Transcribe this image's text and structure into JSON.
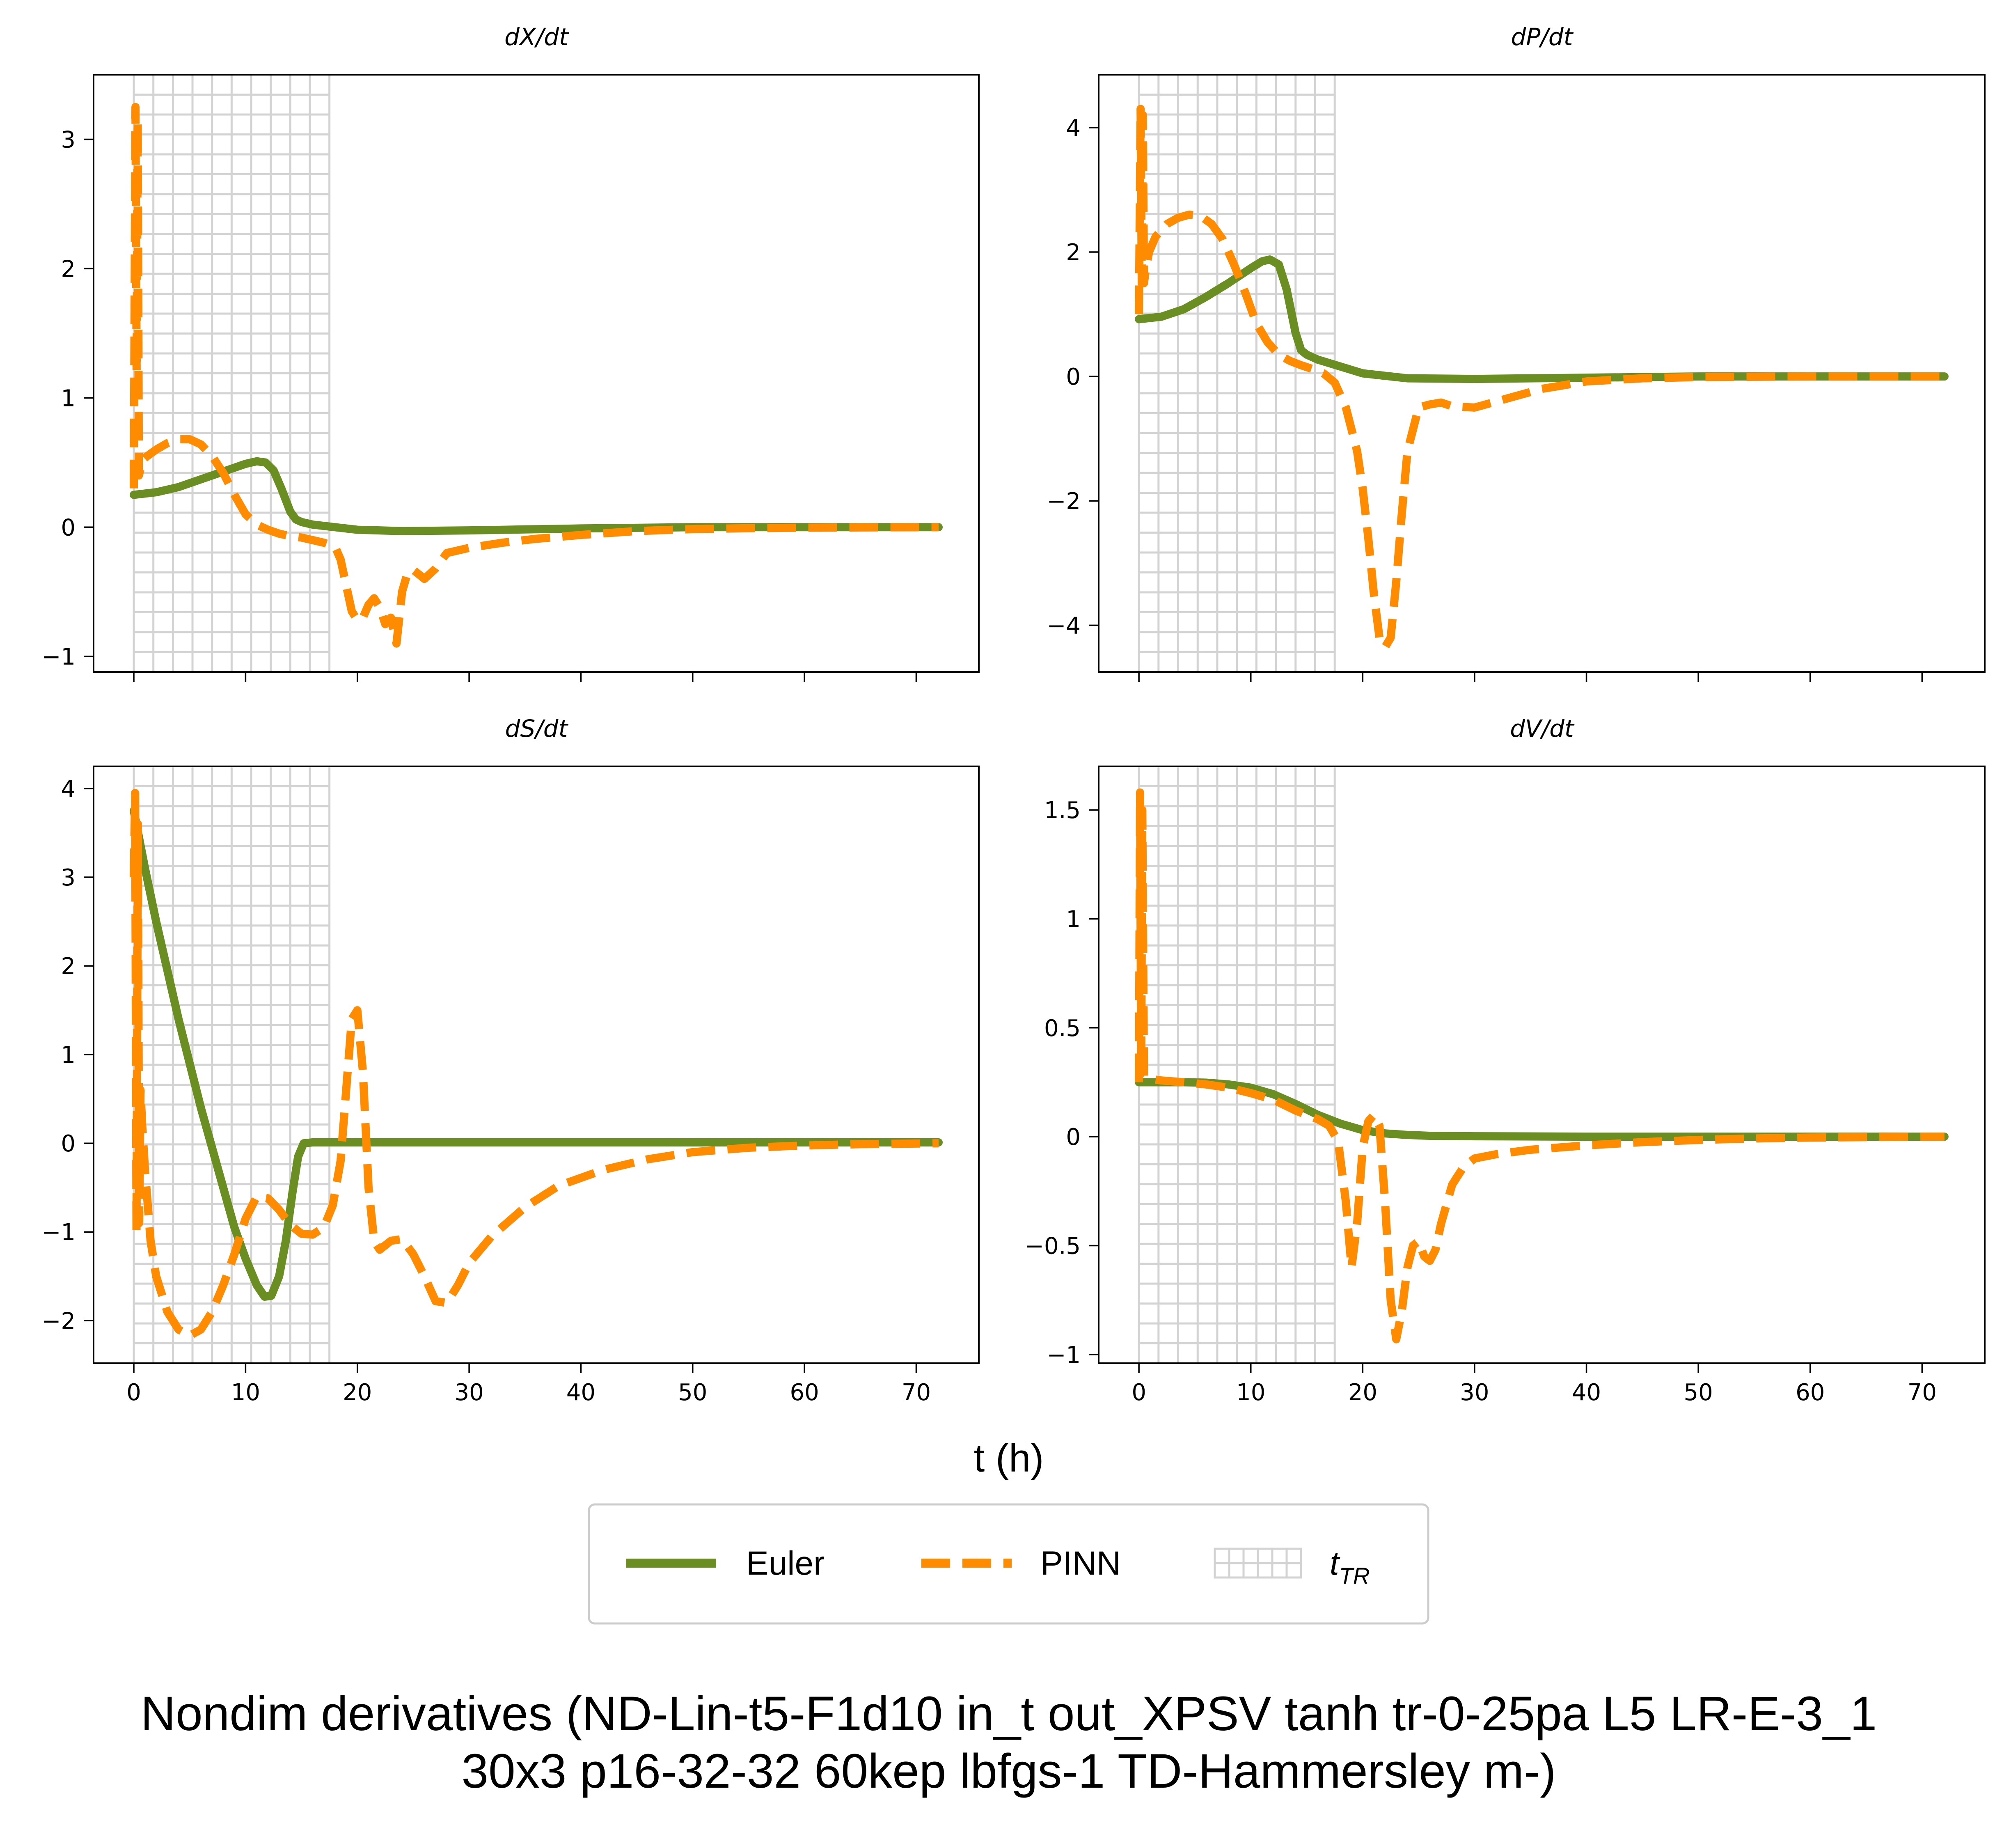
{
  "figure": {
    "title_line1": "Nondim derivatives (ND-Lin-t5-F1d10 in_t out_XPSV tanh tr-0-25pa L5 LR-E-3_1",
    "title_line2": "30x3 p16-32-32 60kep lbfgs-1 TD-Hammersley m-)",
    "xlabel": "t (h)"
  },
  "legend": {
    "euler_label": "Euler",
    "pinn_label": "PINN",
    "ttr_label_main": "t",
    "ttr_label_sub": "TR"
  },
  "colors": {
    "euler": "#6b8e23",
    "pinn": "#ff8c00",
    "training_region": "#d3d3d3"
  },
  "chart_data": [
    {
      "type": "line",
      "title": "dX/dt",
      "xlim": [
        -3.6,
        75.6
      ],
      "ylim": [
        -1.12,
        3.5
      ],
      "xticks": [
        0,
        10,
        20,
        30,
        40,
        50,
        60,
        70
      ],
      "yticks": [
        -1,
        0,
        1,
        2,
        3
      ],
      "training_region": [
        0,
        17.5
      ],
      "series": [
        {
          "name": "Euler",
          "x": [
            0,
            2,
            4,
            6,
            8,
            10,
            11,
            11.8,
            12.5,
            13.2,
            14,
            14.5,
            15,
            16,
            18,
            20,
            24,
            30,
            40,
            50,
            60,
            72
          ],
          "y": [
            0.25,
            0.27,
            0.31,
            0.37,
            0.43,
            0.49,
            0.51,
            0.5,
            0.44,
            0.3,
            0.12,
            0.06,
            0.04,
            0.02,
            0.0,
            -0.02,
            -0.03,
            -0.025,
            -0.01,
            0.0,
            0.0,
            0.0
          ]
        },
        {
          "name": "PINN",
          "x": [
            0,
            0.15,
            0.25,
            0.35,
            0.45,
            0.6,
            0.8,
            1.2,
            2,
            3,
            4,
            5,
            6,
            7,
            8,
            9,
            10,
            11,
            12,
            13,
            14,
            15,
            16,
            17,
            18,
            18.5,
            19,
            19.5,
            20,
            20.5,
            21,
            21.5,
            22,
            22.5,
            23,
            23.5,
            24,
            24.5,
            25,
            26,
            27,
            28,
            30,
            33,
            36,
            40,
            45,
            50,
            55,
            60,
            65,
            72
          ],
          "y": [
            0.3,
            3.25,
            1.2,
            3.15,
            0.4,
            0.45,
            0.52,
            0.55,
            0.6,
            0.65,
            0.68,
            0.68,
            0.64,
            0.55,
            0.42,
            0.25,
            0.1,
            0.02,
            -0.02,
            -0.05,
            -0.07,
            -0.08,
            -0.1,
            -0.12,
            -0.15,
            -0.25,
            -0.45,
            -0.65,
            -0.72,
            -0.7,
            -0.6,
            -0.55,
            -0.62,
            -0.75,
            -0.7,
            -0.9,
            -0.5,
            -0.35,
            -0.33,
            -0.4,
            -0.32,
            -0.2,
            -0.16,
            -0.12,
            -0.09,
            -0.06,
            -0.03,
            -0.015,
            -0.008,
            -0.004,
            -0.002,
            0.0
          ]
        }
      ]
    },
    {
      "type": "line",
      "title": "dP/dt",
      "xlim": [
        -3.6,
        75.6
      ],
      "ylim": [
        -4.75,
        4.85
      ],
      "xticks": [
        0,
        10,
        20,
        30,
        40,
        50,
        60,
        70
      ],
      "yticks": [
        -4,
        -2,
        0,
        2,
        4
      ],
      "training_region": [
        0,
        17.5
      ],
      "series": [
        {
          "name": "Euler",
          "x": [
            0,
            2,
            4,
            6,
            8,
            10,
            11,
            11.7,
            12.5,
            13.2,
            14,
            14.5,
            15,
            16,
            18,
            20,
            24,
            30,
            40,
            50,
            60,
            72
          ],
          "y": [
            0.92,
            0.96,
            1.08,
            1.28,
            1.5,
            1.74,
            1.85,
            1.88,
            1.8,
            1.4,
            0.7,
            0.42,
            0.35,
            0.27,
            0.16,
            0.05,
            -0.03,
            -0.04,
            -0.02,
            0.0,
            0.0,
            0.0
          ]
        },
        {
          "name": "PINN",
          "x": [
            0,
            0.15,
            0.25,
            0.35,
            0.45,
            0.6,
            0.9,
            1.5,
            2.5,
            3.5,
            4.5,
            5.5,
            6.5,
            7.5,
            8.5,
            9.5,
            10.5,
            11.5,
            12.5,
            13.5,
            14.5,
            15.5,
            16.5,
            17.5,
            18.5,
            19.5,
            20,
            20.5,
            21,
            21.5,
            22,
            22.5,
            23,
            23.5,
            24,
            25,
            26,
            27,
            28,
            30,
            33,
            36,
            40,
            45,
            50,
            60,
            72
          ],
          "y": [
            1.0,
            4.3,
            1.5,
            4.2,
            1.5,
            1.7,
            2.0,
            2.25,
            2.45,
            2.55,
            2.6,
            2.58,
            2.45,
            2.2,
            1.8,
            1.35,
            0.85,
            0.55,
            0.35,
            0.25,
            0.18,
            0.12,
            0.05,
            -0.1,
            -0.5,
            -1.2,
            -1.8,
            -2.6,
            -3.5,
            -4.2,
            -4.35,
            -4.2,
            -3.3,
            -2.2,
            -1.2,
            -0.5,
            -0.45,
            -0.42,
            -0.48,
            -0.5,
            -0.35,
            -0.2,
            -0.08,
            -0.03,
            -0.01,
            0.0,
            0.0
          ]
        }
      ]
    },
    {
      "type": "line",
      "title": "dS/dt",
      "xlim": [
        -3.6,
        75.6
      ],
      "ylim": [
        -2.48,
        4.25
      ],
      "xticks": [
        0,
        10,
        20,
        30,
        40,
        50,
        60,
        70
      ],
      "yticks": [
        -2,
        -1,
        0,
        1,
        2,
        3,
        4
      ],
      "training_region": [
        0,
        17.5
      ],
      "series": [
        {
          "name": "Euler",
          "x": [
            0,
            1,
            2,
            3,
            4,
            5,
            6,
            7,
            8,
            9,
            10,
            11,
            11.7,
            12.3,
            13,
            13.6,
            14.2,
            14.7,
            15.2,
            16,
            18,
            20,
            25,
            30,
            40,
            50,
            60,
            72
          ],
          "y": [
            3.75,
            3.1,
            2.5,
            1.95,
            1.4,
            0.9,
            0.4,
            -0.05,
            -0.5,
            -0.95,
            -1.3,
            -1.6,
            -1.73,
            -1.72,
            -1.5,
            -1.1,
            -0.55,
            -0.15,
            0.0,
            0.01,
            0.01,
            0.01,
            0.01,
            0.01,
            0.01,
            0.01,
            0.01,
            0.01
          ]
        },
        {
          "name": "PINN",
          "x": [
            0,
            0.12,
            0.24,
            0.36,
            0.48,
            0.6,
            0.75,
            1,
            1.5,
            2,
            3,
            4,
            5,
            6,
            7,
            8,
            9,
            10,
            11,
            12,
            13,
            14,
            15,
            16,
            17,
            17.8,
            18.5,
            19,
            19.5,
            20,
            20.5,
            21,
            21.5,
            22,
            23,
            24,
            25,
            26,
            27,
            28,
            29,
            30,
            32,
            35,
            38,
            42,
            46,
            50,
            55,
            60,
            65,
            72
          ],
          "y": [
            3.0,
            3.95,
            -1.0,
            3.6,
            -0.9,
            0.6,
            0.2,
            -0.3,
            -1.1,
            -1.5,
            -1.9,
            -2.1,
            -2.17,
            -2.1,
            -1.9,
            -1.6,
            -1.25,
            -0.85,
            -0.6,
            -0.62,
            -0.75,
            -0.92,
            -1.02,
            -1.03,
            -0.95,
            -0.7,
            -0.2,
            0.6,
            1.4,
            1.5,
            0.8,
            -0.5,
            -1.1,
            -1.2,
            -1.1,
            -1.08,
            -1.25,
            -1.5,
            -1.78,
            -1.8,
            -1.6,
            -1.35,
            -1.05,
            -0.72,
            -0.48,
            -0.3,
            -0.18,
            -0.1,
            -0.05,
            -0.025,
            -0.01,
            0.0
          ]
        }
      ]
    },
    {
      "type": "line",
      "title": "dV/dt",
      "xlim": [
        -3.6,
        75.6
      ],
      "ylim": [
        -1.04,
        1.7
      ],
      "xticks": [
        0,
        10,
        20,
        30,
        40,
        50,
        60,
        70
      ],
      "yticks": [
        -1.0,
        -0.5,
        0.0,
        0.5,
        1.0,
        1.5
      ],
      "training_region": [
        0,
        17.5
      ],
      "series": [
        {
          "name": "Euler",
          "x": [
            0,
            2,
            4,
            6,
            8,
            10,
            12,
            14,
            15,
            16,
            17,
            18,
            19,
            20,
            22,
            24,
            26,
            30,
            40,
            50,
            60,
            72
          ],
          "y": [
            0.25,
            0.25,
            0.25,
            0.248,
            0.24,
            0.225,
            0.195,
            0.15,
            0.125,
            0.1,
            0.08,
            0.06,
            0.045,
            0.03,
            0.015,
            0.008,
            0.004,
            0.002,
            0.0,
            0.0,
            0.0,
            0.0
          ]
        },
        {
          "name": "PINN",
          "x": [
            0,
            0.1,
            0.2,
            0.3,
            0.45,
            0.7,
            1,
            2,
            4,
            6,
            8,
            10,
            12,
            14,
            15,
            16,
            17,
            17.8,
            18.5,
            19,
            19.5,
            20,
            20.5,
            21,
            21.5,
            22,
            22.5,
            23,
            23.5,
            24,
            24.5,
            25,
            25.5,
            26,
            26.5,
            27,
            28,
            29,
            30,
            32,
            35,
            40,
            45,
            50,
            55,
            60,
            72
          ],
          "y": [
            0.25,
            1.58,
            0.3,
            1.5,
            0.28,
            0.27,
            0.265,
            0.258,
            0.25,
            0.24,
            0.225,
            0.2,
            0.17,
            0.12,
            0.1,
            0.08,
            0.05,
            -0.02,
            -0.3,
            -0.6,
            -0.4,
            -0.05,
            0.07,
            0.1,
            0.05,
            -0.3,
            -0.75,
            -0.93,
            -0.8,
            -0.6,
            -0.5,
            -0.48,
            -0.55,
            -0.57,
            -0.52,
            -0.4,
            -0.22,
            -0.14,
            -0.1,
            -0.08,
            -0.06,
            -0.04,
            -0.025,
            -0.015,
            -0.008,
            -0.004,
            0.0
          ]
        }
      ]
    }
  ]
}
